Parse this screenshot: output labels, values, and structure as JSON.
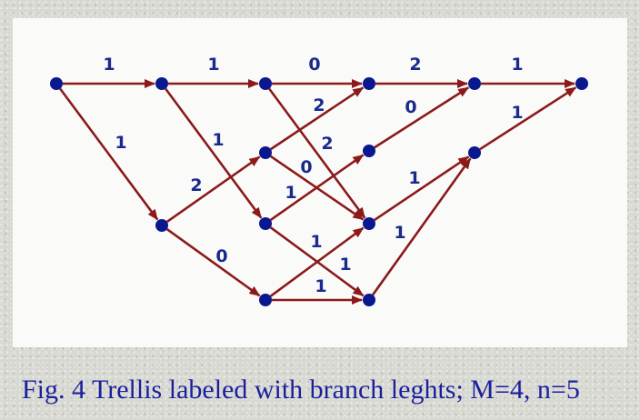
{
  "colors": {
    "edge": "#8b1a1a",
    "node": "#0a1890",
    "label": "#1a2a8c",
    "caption": "#1a1f9c"
  },
  "caption": "Fig. 4 Trellis labeled with branch leghts; M=4, n=5",
  "diagram": {
    "nodes": [
      {
        "id": "n0_0",
        "stage": 0,
        "state": 0
      },
      {
        "id": "n1_0",
        "stage": 1,
        "state": 0
      },
      {
        "id": "n1_2",
        "stage": 1,
        "state": 2
      },
      {
        "id": "n2_0",
        "stage": 2,
        "state": 0
      },
      {
        "id": "n2_1",
        "stage": 2,
        "state": 1
      },
      {
        "id": "n2_2",
        "stage": 2,
        "state": 2
      },
      {
        "id": "n2_3",
        "stage": 2,
        "state": 3
      },
      {
        "id": "n3_0",
        "stage": 3,
        "state": 0
      },
      {
        "id": "n3_1",
        "stage": 3,
        "state": 1
      },
      {
        "id": "n3_2",
        "stage": 3,
        "state": 2
      },
      {
        "id": "n3_3",
        "stage": 3,
        "state": 3
      },
      {
        "id": "n4_0",
        "stage": 4,
        "state": 0
      },
      {
        "id": "n4_1",
        "stage": 4,
        "state": 1
      },
      {
        "id": "n5_0",
        "stage": 5,
        "state": 0
      }
    ],
    "edges": [
      {
        "from": "n0_0",
        "to": "n1_0",
        "label": "1"
      },
      {
        "from": "n0_0",
        "to": "n1_2",
        "label": "1"
      },
      {
        "from": "n1_0",
        "to": "n2_0",
        "label": "1"
      },
      {
        "from": "n1_0",
        "to": "n2_2",
        "label": "1"
      },
      {
        "from": "n1_2",
        "to": "n2_1",
        "label": "2"
      },
      {
        "from": "n1_2",
        "to": "n2_3",
        "label": "0"
      },
      {
        "from": "n2_0",
        "to": "n3_0",
        "label": "0"
      },
      {
        "from": "n2_0",
        "to": "n3_2",
        "label": "2"
      },
      {
        "from": "n2_1",
        "to": "n3_0",
        "label": "2"
      },
      {
        "from": "n2_1",
        "to": "n3_2",
        "label": "0"
      },
      {
        "from": "n2_2",
        "to": "n3_1",
        "label": "1"
      },
      {
        "from": "n2_2",
        "to": "n3_3",
        "label": "1"
      },
      {
        "from": "n2_3",
        "to": "n3_2",
        "label": "1"
      },
      {
        "from": "n2_3",
        "to": "n3_3",
        "label": "1"
      },
      {
        "from": "n3_0",
        "to": "n4_0",
        "label": "2"
      },
      {
        "from": "n3_1",
        "to": "n4_0",
        "label": "0"
      },
      {
        "from": "n3_2",
        "to": "n4_1",
        "label": "1"
      },
      {
        "from": "n3_3",
        "to": "n4_1",
        "label": "1"
      },
      {
        "from": "n4_0",
        "to": "n5_0",
        "label": "1"
      },
      {
        "from": "n4_1",
        "to": "n5_0",
        "label": "1"
      }
    ]
  }
}
